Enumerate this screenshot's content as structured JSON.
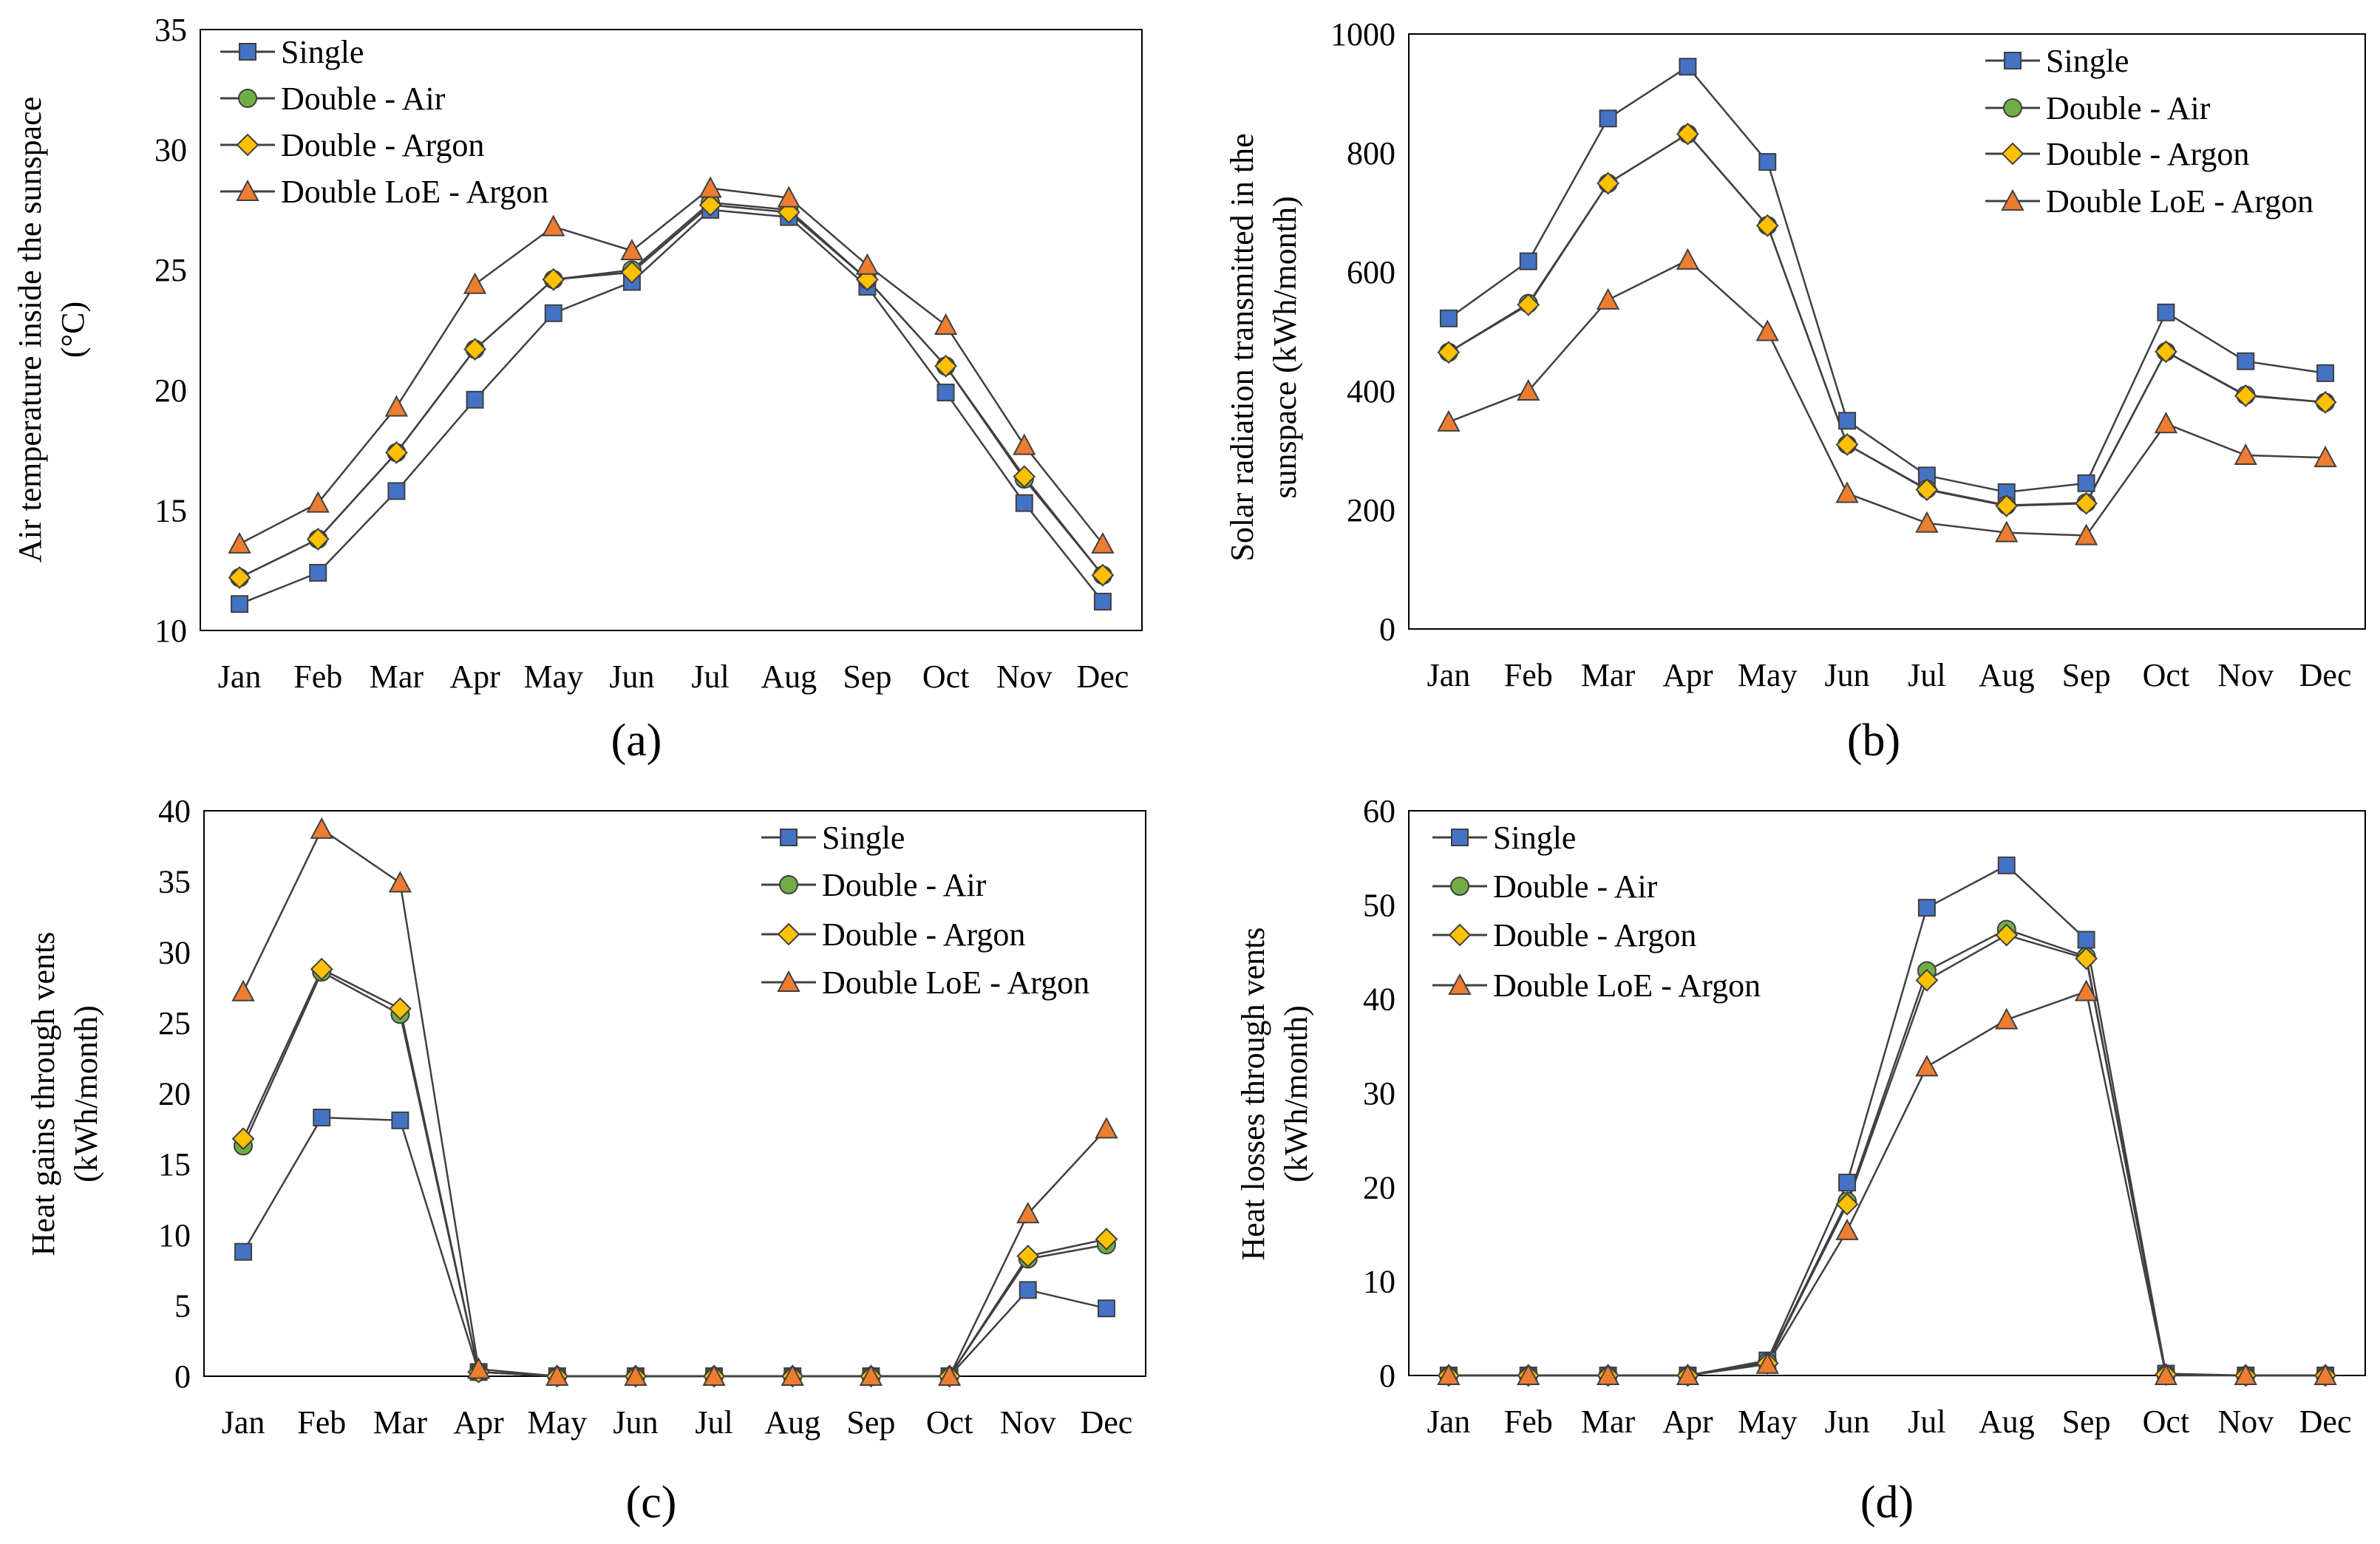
{
  "figure": {
    "colors": {
      "Single": "#4472C4",
      "Double - Air": "#70AD47",
      "Double - Argon": "#FFC000",
      "Double LoE - Argon": "#ED7D31",
      "line": "#404040",
      "axis": "#000000"
    },
    "markers": {
      "Single": "square",
      "Double - Air": "circle",
      "Double - Argon": "diamond",
      "Double LoE - Argon": "triangle"
    }
  },
  "chart_data": [
    {
      "type": "line",
      "panel_label": "(a)",
      "ylabel_lines": [
        "Air temperature inside the sunspace",
        "(°C)"
      ],
      "xlabel": "",
      "categories": [
        "Jan",
        "Feb",
        "Mar",
        "Apr",
        "May",
        "Jun",
        "Jul",
        "Aug",
        "Sep",
        "Oct",
        "Nov",
        "Dec"
      ],
      "ylim": [
        10,
        35
      ],
      "yticks": [
        10,
        15,
        20,
        25,
        30,
        35
      ],
      "legend_position": "top-left",
      "series": [
        {
          "name": "Single",
          "values": [
            11.1,
            12.4,
            15.8,
            19.6,
            23.2,
            24.5,
            27.5,
            27.2,
            24.3,
            19.9,
            15.3,
            11.2
          ]
        },
        {
          "name": "Double - Air",
          "values": [
            12.2,
            13.8,
            17.4,
            21.7,
            24.6,
            25.0,
            27.8,
            27.5,
            24.6,
            21.0,
            16.3,
            12.3
          ]
        },
        {
          "name": "Double - Argon",
          "values": [
            12.2,
            13.8,
            17.4,
            21.7,
            24.6,
            24.9,
            27.7,
            27.4,
            24.6,
            21.0,
            16.4,
            12.3
          ]
        },
        {
          "name": "Double LoE - Argon",
          "values": [
            13.6,
            15.3,
            19.3,
            24.4,
            26.8,
            25.8,
            28.4,
            28.0,
            25.2,
            22.7,
            17.7,
            13.6
          ]
        }
      ]
    },
    {
      "type": "line",
      "panel_label": "(b)",
      "ylabel_lines": [
        "Solar radiation transmitted in the",
        "sunspace (kWh/month)"
      ],
      "xlabel": "",
      "categories": [
        "Jan",
        "Feb",
        "Mar",
        "Apr",
        "May",
        "Jun",
        "Jul",
        "Aug",
        "Sep",
        "Oct",
        "Nov",
        "Dec"
      ],
      "ylim": [
        0,
        1000
      ],
      "yticks": [
        0,
        200,
        400,
        600,
        800,
        1000
      ],
      "legend_position": "top-right",
      "series": [
        {
          "name": "Single",
          "values": [
            522,
            618,
            858,
            945,
            785,
            350,
            258,
            230,
            245,
            532,
            450,
            430
          ]
        },
        {
          "name": "Double - Air",
          "values": [
            465,
            547,
            749,
            832,
            678,
            310,
            235,
            208,
            212,
            466,
            393,
            381
          ]
        },
        {
          "name": "Double - Argon",
          "values": [
            465,
            545,
            749,
            832,
            678,
            310,
            234,
            207,
            211,
            466,
            392,
            381
          ]
        },
        {
          "name": "Double LoE - Argon",
          "values": [
            348,
            400,
            553,
            620,
            500,
            228,
            178,
            162,
            157,
            345,
            292,
            288
          ]
        }
      ]
    },
    {
      "type": "line",
      "panel_label": "(c)",
      "ylabel_lines": [
        "Heat gains through vents",
        "(kWh/month)"
      ],
      "xlabel": "",
      "categories": [
        "Jan",
        "Feb",
        "Mar",
        "Apr",
        "May",
        "Jun",
        "Jul",
        "Aug",
        "Sep",
        "Oct",
        "Nov",
        "Dec"
      ],
      "ylim": [
        0,
        40
      ],
      "yticks": [
        0,
        5,
        10,
        15,
        20,
        25,
        30,
        35,
        40
      ],
      "legend_position": "top-right",
      "series": [
        {
          "name": "Single",
          "values": [
            8.8,
            18.3,
            18.1,
            0.3,
            0,
            0,
            0,
            0,
            0,
            0,
            6.1,
            4.8
          ]
        },
        {
          "name": "Double - Air",
          "values": [
            16.3,
            28.6,
            25.6,
            0.3,
            0,
            0,
            0,
            0,
            0,
            0,
            8.3,
            9.3
          ]
        },
        {
          "name": "Double - Argon",
          "values": [
            16.8,
            28.8,
            26.0,
            0.3,
            0,
            0,
            0,
            0,
            0,
            0,
            8.5,
            9.7
          ]
        },
        {
          "name": "Double LoE - Argon",
          "values": [
            27.2,
            38.7,
            34.9,
            0.5,
            0,
            0,
            0,
            0,
            0,
            0,
            11.5,
            17.5
          ]
        }
      ]
    },
    {
      "type": "line",
      "panel_label": "(d)",
      "ylabel_lines": [
        "Heat losses through vents",
        "(kWh/month)"
      ],
      "xlabel": "",
      "categories": [
        "Jan",
        "Feb",
        "Mar",
        "Apr",
        "May",
        "Jun",
        "Jul",
        "Aug",
        "Sep",
        "Oct",
        "Nov",
        "Dec"
      ],
      "ylim": [
        0,
        60
      ],
      "yticks": [
        0,
        10,
        20,
        30,
        40,
        50,
        60
      ],
      "legend_position": "top-left",
      "series": [
        {
          "name": "Single",
          "values": [
            0,
            0,
            0,
            0,
            1.6,
            20.5,
            49.7,
            54.2,
            46.3,
            0.2,
            0,
            0
          ]
        },
        {
          "name": "Double - Air",
          "values": [
            0,
            0,
            0,
            0,
            1.4,
            18.5,
            43.0,
            47.4,
            44.5,
            0.1,
            0,
            0
          ]
        },
        {
          "name": "Double - Argon",
          "values": [
            0,
            0,
            0,
            0,
            1.3,
            18.2,
            42.0,
            46.8,
            44.3,
            0.1,
            0,
            0
          ]
        },
        {
          "name": "Double LoE - Argon",
          "values": [
            0,
            0,
            0,
            0,
            1.2,
            15.4,
            32.8,
            37.8,
            40.8,
            0,
            0,
            0
          ]
        }
      ]
    }
  ]
}
